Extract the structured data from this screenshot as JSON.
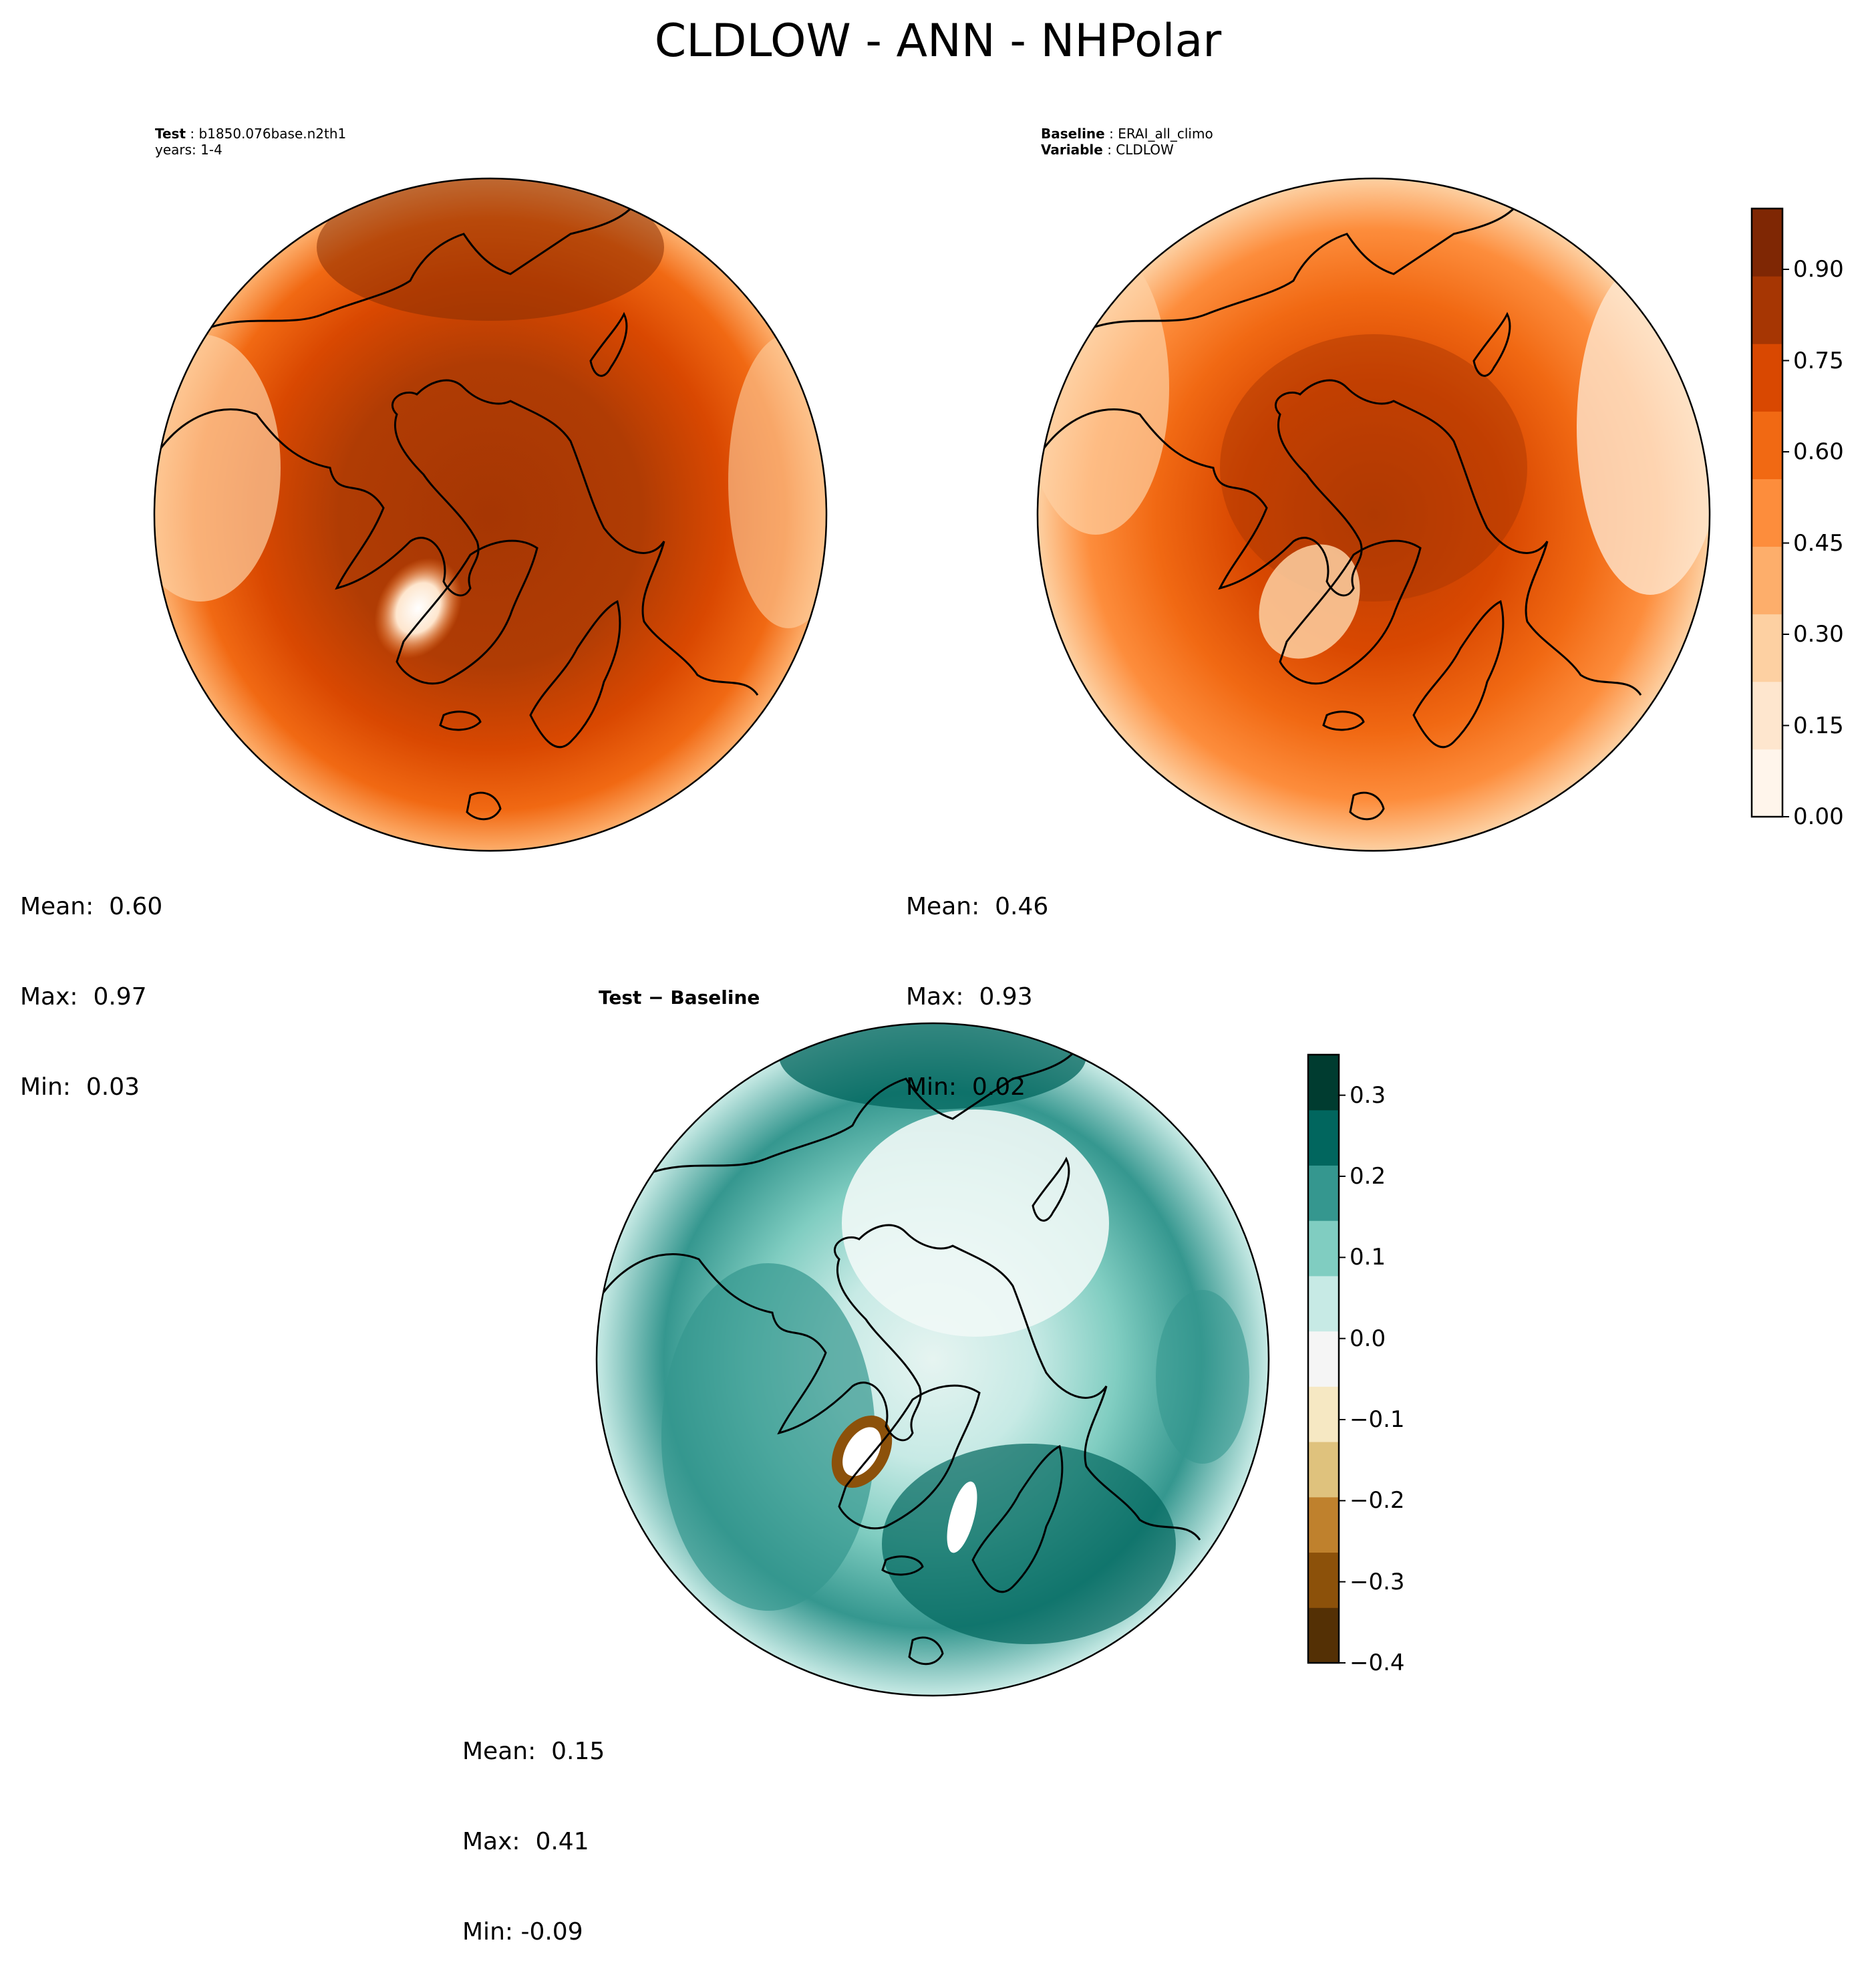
{
  "title": "CLDLOW - ANN - NHPolar",
  "panels": {
    "test": {
      "header_label": "Test",
      "header_value": "b1850.076base.n2th1",
      "header_line2": "years: 1-4",
      "mean": "Mean:  0.60",
      "max": "Max:  0.97",
      "min": "Min:  0.03"
    },
    "baseline": {
      "header_label": "Baseline",
      "header_value": "ERAI_all_climo",
      "header_label2": "Variable",
      "header_value2": "CLDLOW",
      "mean": "Mean:  0.46",
      "max": "Max:  0.93",
      "min": "Min:  0.02"
    },
    "diff": {
      "title": "Test − Baseline",
      "mean": "Mean:  0.15",
      "max": "Max:  0.41",
      "min": "Min: -0.09"
    }
  },
  "colorbars": {
    "main": {
      "colormap": "Oranges",
      "range": [
        0.0,
        1.0
      ],
      "ticks": [
        "0.00",
        "0.15",
        "0.30",
        "0.45",
        "0.60",
        "0.75",
        "0.90"
      ],
      "colors": [
        "#fff5eb",
        "#fee6ce",
        "#fdd0a2",
        "#fdae6b",
        "#fd8d3c",
        "#f16913",
        "#d94801",
        "#a63603",
        "#7f2704"
      ]
    },
    "diff": {
      "colormap": "BrBG",
      "range": [
        -0.4,
        0.35
      ],
      "ticks": [
        "−0.4",
        "−0.3",
        "−0.2",
        "−0.1",
        "0.0",
        "0.1",
        "0.2",
        "0.3"
      ],
      "colors": [
        "#543005",
        "#8c510a",
        "#bf812d",
        "#dfc27d",
        "#f6e8c3",
        "#f5f5f5",
        "#c7eae5",
        "#80cdc1",
        "#35978f",
        "#01665e",
        "#003c30"
      ]
    }
  }
}
